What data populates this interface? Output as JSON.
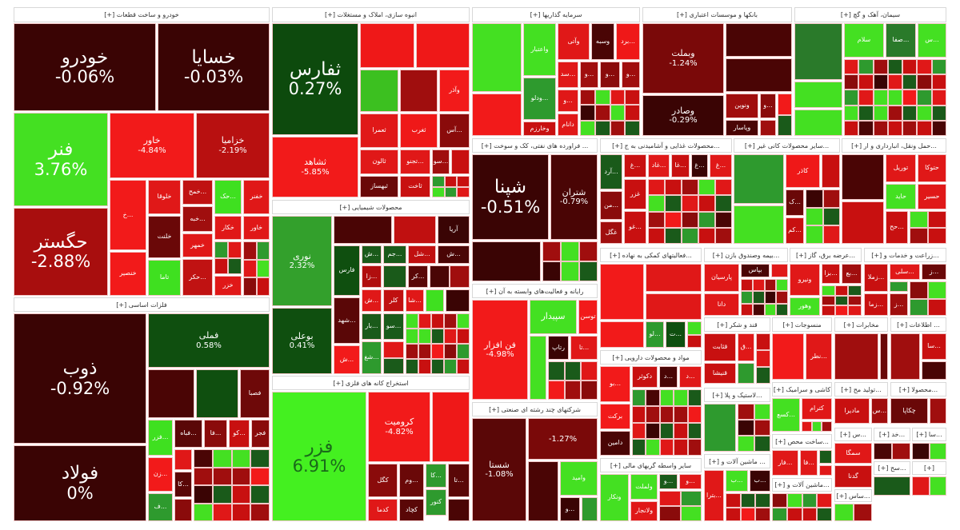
{
  "chart_data": {
    "type": "treemap",
    "title": "",
    "sectors": [
      {
        "title": "خودرو و ساخت قطعات [+]",
        "tiles": [
          {
            "label": "خودرو",
            "pct": "-0.06%",
            "color": "#3a0404"
          },
          {
            "label": "خسایا",
            "pct": "-0.03%",
            "color": "#3a0404"
          },
          {
            "label": "فنر",
            "pct": "3.76%",
            "color": "#44e022"
          },
          {
            "label": "خاور",
            "pct": "-4.84%",
            "color": "#f21a1a"
          },
          {
            "label": "خزامیا",
            "pct": "-2.19%",
            "color": "#b81010"
          },
          {
            "label": "حگستر",
            "pct": "-2.88%",
            "color": "#a80e0e"
          },
          {
            "label": "...خ",
            "color": "#f21a1a"
          },
          {
            "label": "خلوقا",
            "color": "#e01818"
          },
          {
            "label": "...خمح",
            "color": "#c01212"
          },
          {
            "label": "...حک",
            "color": "#3fe020"
          },
          {
            "label": "خفنر",
            "color": "#e01818"
          },
          {
            "label": "...خبه",
            "color": "#a00e0e"
          },
          {
            "label": "خلنت",
            "color": "#6a0808"
          },
          {
            "label": "خکار",
            "color": "#e01818"
          },
          {
            "label": "خاور",
            "color": "#e01818"
          },
          {
            "label": "خنصیر",
            "color": "#f21a1a"
          },
          {
            "label": "تاما",
            "color": "#3fe020"
          },
          {
            "label": "خمهر",
            "color": "#e01818"
          },
          {
            "label": "...حکر",
            "color": "#c01212"
          },
          {
            "label": "خزر",
            "color": "#e01818"
          }
        ]
      },
      {
        "title": "فلزات اساسی [+]",
        "tiles": [
          {
            "label": "ذوب",
            "pct": "-0.92%",
            "color": "#3a0404"
          },
          {
            "label": "فولاد",
            "pct": "0%",
            "color": "#3a0404"
          },
          {
            "label": "فملی",
            "pct": "0.58%",
            "color": "#0f4f0f"
          },
          {
            "color": "#4a0505"
          },
          {
            "color": "#0f4f0f"
          },
          {
            "label": "فصبا",
            "color": "#6e0909"
          },
          {
            "label": "...فزر",
            "color": "#3fe020"
          },
          {
            "label": "...فباه",
            "color": "#5a0707"
          },
          {
            "label": "...فا",
            "color": "#8a0b0b"
          },
          {
            "label": "...کو",
            "color": "#c81010"
          },
          {
            "label": "فجر",
            "color": "#8a0b0b"
          },
          {
            "label": "...زن",
            "color": "#f21a1a"
          },
          {
            "label": "...کا",
            "color": "#5a0707"
          },
          {
            "label": "...ف",
            "color": "#2e9a2e"
          }
        ]
      },
      {
        "title": "انبوه سازی، املاک و مستغلات [+]",
        "tiles": [
          {
            "label": "ثفارس",
            "pct": "0.27%",
            "color": "#0d4a0d"
          },
          {
            "label": "ثشاهد",
            "pct": "-5.85%",
            "color": "#f21a1a"
          },
          {
            "color": "#ef1818"
          },
          {
            "color": "#ef1818"
          },
          {
            "color": "#3cc020"
          },
          {
            "color": "#a00e0e"
          },
          {
            "label": "وآذر",
            "color": "#f21a1a"
          },
          {
            "label": "ثعمرا",
            "color": "#e01818"
          },
          {
            "label": "ثغرب",
            "color": "#ef1818"
          },
          {
            "label": "...آس",
            "color": "#8a0b0b"
          },
          {
            "label": "ثالون",
            "color": "#e01818"
          },
          {
            "label": "...تجنو",
            "color": "#e01818"
          },
          {
            "label": "...سو",
            "color": "#a00e0e"
          },
          {
            "color": "#c81010"
          },
          {
            "label": "ثبهساز",
            "color": "#6a0808"
          },
          {
            "label": "ثاخت",
            "color": "#c81010"
          }
        ]
      },
      {
        "title": "محصولات شیمیایی [+]",
        "tiles": [
          {
            "label": "نوری",
            "pct": "2.32%",
            "color": "#33a02c"
          },
          {
            "label": "بوعلی",
            "pct": "0.41%",
            "color": "#0f4f0f"
          },
          {
            "color": "#4a0505"
          },
          {
            "color": "#c01010"
          },
          {
            "label": "آریا",
            "color": "#3a0404"
          },
          {
            "label": "فارس",
            "color": "#0f4f0f"
          },
          {
            "label": "...ش",
            "color": "#1a5a1a"
          },
          {
            "label": "...جم",
            "color": "#1a5a1a"
          },
          {
            "label": "...شل",
            "color": "#c01010"
          },
          {
            "label": "...ش",
            "color": "#4a0505"
          },
          {
            "label": "...شهد",
            "color": "#5a0707"
          },
          {
            "label": "...ش",
            "color": "#f21a1a"
          },
          {
            "label": "...زا",
            "color": "#b00e0e"
          },
          {
            "label": "...کر",
            "color": "#5a0707"
          },
          {
            "label": "...ش",
            "color": "#e01818"
          },
          {
            "label": "کلر",
            "color": "#c01010"
          },
          {
            "label": "...شا",
            "color": "#e01818"
          },
          {
            "color": "#3fe020"
          },
          {
            "label": "...بار",
            "color": "#1a5a1a"
          },
          {
            "label": "...سو",
            "color": "#1a5a1a"
          },
          {
            "label": "...شغ",
            "color": "#2e9a2e"
          }
        ]
      },
      {
        "title": "استخراج کانه های فلزی [+]",
        "tiles": [
          {
            "label": "فزر",
            "pct": "6.91%",
            "color": "#44f020",
            "text_color": "#1a6a1a"
          },
          {
            "label": "کرومیت",
            "pct": "-4.82%",
            "color": "#f21a1a"
          },
          {
            "color": "#ef1818"
          },
          {
            "label": "کگل",
            "color": "#8a0b0b"
          },
          {
            "label": "...وم",
            "color": "#6a0808"
          },
          {
            "label": "...کا",
            "color": "#2e9a2e"
          },
          {
            "label": "...تا",
            "color": "#5a0707"
          },
          {
            "label": "کدما",
            "color": "#e01818"
          },
          {
            "label": "کچاد",
            "color": "#5a0707"
          },
          {
            "label": "کنور",
            "color": "#2e9a2e"
          }
        ]
      },
      {
        "title": "سرمایه گذاریها [+]",
        "tiles": [
          {
            "color": "#44e022"
          },
          {
            "color": "#f21a1a"
          },
          {
            "label": "واعتبار",
            "color": "#44e022"
          },
          {
            "label": "...ودلو",
            "color": "#2e9a2e"
          },
          {
            "label": "وخارزم",
            "color": "#c81010"
          },
          {
            "label": "وآتی",
            "color": "#e01818"
          },
          {
            "label": "وسبه",
            "color": "#4a0505"
          },
          {
            "label": "...برد",
            "color": "#ef1818"
          },
          {
            "label": "...سد",
            "color": "#e01818"
          },
          {
            "label": "...و",
            "color": "#a00e0e"
          },
          {
            "label": "...و",
            "color": "#8a0b0b"
          },
          {
            "label": "...و",
            "color": "#a00e0e"
          },
          {
            "label": "...و",
            "color": "#e01818"
          },
          {
            "label": "دانام",
            "color": "#e01818"
          }
        ]
      },
      {
        "title": "بانکها و موسسات اعتباری [+]",
        "tiles": [
          {
            "label": "وبملت",
            "pct": "-1.24%",
            "color": "#7a0909"
          },
          {
            "label": "وصادر",
            "pct": "-0.29%",
            "color": "#3a0404"
          },
          {
            "color": "#4a0505"
          },
          {
            "color": "#4a0505"
          },
          {
            "label": "ونوین",
            "color": "#a00e0e"
          },
          {
            "label": "...و",
            "color": "#8a0b0b"
          },
          {
            "label": "وپاسار",
            "color": "#4a0505"
          }
        ]
      },
      {
        "title": "سیمان، آهک و گچ [+]",
        "tiles": [
          {
            "color": "#2a7a2a"
          },
          {
            "color": "#44e022"
          },
          {
            "color": "#44e022"
          },
          {
            "label": "سلام",
            "color": "#44e022"
          },
          {
            "label": "...صفا",
            "color": "#2a7a2a"
          },
          {
            "label": "...س",
            "color": "#44e022"
          }
        ]
      },
      {
        "title": "... فراورده های نفتی، کک و سوخت [+]",
        "tiles": [
          {
            "label": "شپنا",
            "pct": "-0.51%",
            "color": "#3a0404"
          },
          {
            "label": "شتران",
            "pct": "-0.79%",
            "color": "#4a0505"
          },
          {
            "color": "#3a0404"
          }
        ]
      },
      {
        "title": "...محصولات غذایی و آشامیدنی به ج [+]",
        "tiles": [
          {
            "label": "...آرد",
            "color": "#1a5a1a"
          },
          {
            "label": "...غ",
            "color": "#c81010"
          },
          {
            "label": "...غاد",
            "color": "#e01818"
          },
          {
            "label": "...غا",
            "color": "#c81010"
          },
          {
            "label": "...غ",
            "color": "#3a0404"
          },
          {
            "label": "...غ",
            "color": "#e01818"
          },
          {
            "label": "...من",
            "color": "#8a0b0b"
          },
          {
            "label": "غگل",
            "color": "#a00e0e"
          },
          {
            "label": "غزر",
            "color": "#c81010"
          },
          {
            "label": "...غو",
            "color": "#c81010"
          }
        ]
      },
      {
        "title": "...سایر محصولات کانی غیر [+]",
        "tiles": [
          {
            "color": "#2e9a2e"
          },
          {
            "color": "#44e022"
          },
          {
            "label": "کاذر",
            "color": "#ef1818"
          },
          {
            "color": "#c81010"
          },
          {
            "label": "...ک",
            "color": "#6a0808"
          },
          {
            "label": "...کم",
            "color": "#c81010"
          }
        ]
      },
      {
        "title": "...حمل ونقل، انبارداری و ار [+]",
        "tiles": [
          {
            "color": "#4a0505"
          },
          {
            "label": "توریل",
            "color": "#e01818"
          },
          {
            "label": "حتوکا",
            "color": "#e01818"
          },
          {
            "label": "حاید",
            "color": "#44e022"
          },
          {
            "label": "حسیر",
            "color": "#e01818"
          },
          {
            "color": "#c81010"
          },
          {
            "label": "...حح",
            "color": "#c81010"
          }
        ]
      },
      {
        "title": "رایانه و فعالیت‌های وابسته به آن [+]",
        "tiles": [
          {
            "label": "فن افزار",
            "pct": "-4.98%",
            "color": "#f21a1a"
          },
          {
            "label": "سپیدار",
            "color": "#44e022"
          },
          {
            "label": "توسن",
            "color": "#f21a1a"
          },
          {
            "color": "#44e022"
          },
          {
            "label": "رتاپ",
            "color": "#3a0404"
          },
          {
            "label": "...تا",
            "color": "#e01818"
          }
        ]
      },
      {
        "title": "شرکتهای چند رشته ای صنعتی [+]",
        "tiles": [
          {
            "label": "شستا",
            "pct": "-1.08%",
            "color": "#5a0707"
          },
          {
            "pct": "-1.27%",
            "color": "#7a0909"
          },
          {
            "color": "#4a0505"
          },
          {
            "label": "وامید",
            "color": "#44e022"
          },
          {
            "label": "...و",
            "color": "#3a0404"
          }
        ]
      },
      {
        "title": "...فعالیتهای کمکی به نهاده [+]",
        "tiles": [
          {
            "color": "#f21a1a"
          },
          {
            "color": "#e01818"
          },
          {
            "color": "#e01818"
          },
          {
            "color": "#f21a1a"
          },
          {
            "label": "...لو",
            "color": "#2e9a2e"
          },
          {
            "label": "...ت",
            "color": "#0f4f0f"
          }
        ]
      },
      {
        "title": "مواد و محصولات دارویی [+]",
        "tiles": [
          {
            "label": "...بو",
            "color": "#f21a1a"
          },
          {
            "label": "دکوثر",
            "color": "#c81010"
          },
          {
            "label": "...د",
            "color": "#4a0505"
          },
          {
            "label": "...د",
            "color": "#e01818"
          },
          {
            "label": "برکت",
            "color": "#f21a1a"
          },
          {
            "label": "دامین",
            "color": "#4a0505"
          }
        ]
      },
      {
        "title": "سایر واسطه گریهای مالی [+]",
        "tiles": [
          {
            "label": "ونکار",
            "color": "#44e022"
          },
          {
            "label": "ولملت",
            "color": "#44e022"
          },
          {
            "label": "...و",
            "color": "#1a5a1a"
          },
          {
            "label": "...و",
            "color": "#e01818"
          },
          {
            "label": "ولانجار",
            "color": "#e01818"
          }
        ]
      },
      {
        "title": "...بیمه وصندوق بازن [+]",
        "tiles": [
          {
            "label": "پارسیان",
            "color": "#e01818"
          },
          {
            "label": "بپاس",
            "color": "#4a0505"
          },
          {
            "label": "دانا",
            "color": "#e01818"
          }
        ]
      },
      {
        "title": "...عرضه برق، گاز [+]",
        "tiles": [
          {
            "label": "ونیرو",
            "color": "#e01818"
          },
          {
            "label": "...بزا",
            "color": "#c81010"
          },
          {
            "label": "...بع",
            "color": "#a00e0e"
          },
          {
            "label": "وهور",
            "color": "#44e022"
          }
        ]
      },
      {
        "title": "...زراعت و خدمات و [+]",
        "tiles": [
          {
            "label": "...زملا",
            "color": "#c81010"
          },
          {
            "label": "...سلی",
            "color": "#e01818"
          },
          {
            "label": "...ز",
            "color": "#6a0808"
          },
          {
            "label": "...زما",
            "color": "#c81010"
          },
          {
            "label": "...ز",
            "color": "#a00e0e"
          }
        ]
      },
      {
        "title": "قند و شکر [+]",
        "tiles": [
          {
            "label": "قثابت",
            "color": "#c81010"
          },
          {
            "label": "...ق",
            "color": "#e01818"
          },
          {
            "label": "قنیشا",
            "color": "#c81010"
          },
          {
            "color": "#2e9a2e"
          }
        ]
      },
      {
        "title": "منسوجات [+]",
        "tiles": [
          {
            "color": "#f21a1a"
          },
          {
            "label": "...نطر",
            "color": "#e01818"
          }
        ]
      },
      {
        "title": "مخابرات [+]",
        "tiles": [
          {
            "color": "#a00e0e"
          },
          {
            "color": "#6a0808"
          }
        ]
      },
      {
        "title": "... اطلاعات [+]",
        "tiles": [
          {
            "color": "#a00e0e"
          },
          {
            "label": "...سا",
            "color": "#c81010"
          }
        ]
      },
      {
        "title": "...لاستیک و پلا [+]",
        "tiles": [
          {
            "color": "#2e9a2e"
          }
        ]
      },
      {
        "title": "کاشی و سرامیک [+]",
        "tiles": [
          {
            "label": "...کسع",
            "color": "#44e022"
          },
          {
            "label": "کترام",
            "color": "#e01818"
          }
        ]
      },
      {
        "title": "...تولید مح [+]",
        "tiles": [
          {
            "label": "مادیرا",
            "color": "#c81010"
          },
          {
            "label": "...س",
            "color": "#a00e0e"
          }
        ]
      },
      {
        "title": "...محصولا [+]",
        "tiles": [
          {
            "label": "چکاپا",
            "color": "#6a0808"
          },
          {
            "color": "#a00e0e"
          }
        ]
      },
      {
        "title": "... ماشین آلات و [+]",
        "tiles": [
          {
            "label": "...بترا",
            "color": "#e01818"
          },
          {
            "label": "...ب",
            "color": "#44e022"
          },
          {
            "label": "...ب",
            "color": "#3a0404"
          }
        ]
      },
      {
        "title": "...ساخت محص [+]",
        "tiles": [
          {
            "label": "...فار",
            "color": "#e01818"
          },
          {
            "label": "...فا",
            "color": "#e01818"
          },
          {
            "color": "#1a5a1a"
          }
        ]
      },
      {
        "title": "...ماشین آلات و [+]",
        "tiles": []
      },
      {
        "title": "...س [+]",
        "tiles": [
          {
            "label": "سمگا",
            "color": "#e01818"
          },
          {
            "label": "گدنا",
            "color": "#c81010"
          }
        ]
      },
      {
        "title": "...خد [+]",
        "tiles": []
      },
      {
        "title": "...سا [+]",
        "tiles": []
      },
      {
        "title": "...ساس [+]",
        "tiles": []
      },
      {
        "title": "...سح [+]",
        "tiles": []
      },
      {
        "title": "[+]",
        "tiles": []
      }
    ]
  }
}
